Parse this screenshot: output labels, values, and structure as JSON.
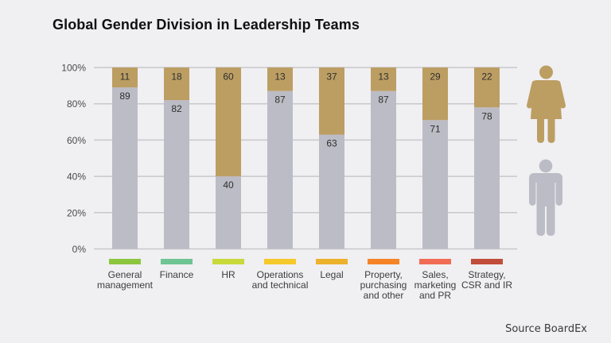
{
  "source": "Source BoardEx",
  "colors": {
    "background": "#f0eff2",
    "women": "#bc9e63",
    "men": "#bcbcc6",
    "gridline": "#c8c8cc"
  },
  "icons": {
    "women": "female-figure-icon",
    "men": "male-figure-icon"
  },
  "chart_data": {
    "type": "bar",
    "stacked": true,
    "title": "Global Gender Division in Leadership Teams",
    "xlabel": "",
    "ylabel": "",
    "ylim": [
      0,
      100
    ],
    "yticks": [
      0,
      20,
      40,
      60,
      80,
      100
    ],
    "ytick_labels": [
      "0%",
      "20%",
      "40%",
      "60%",
      "80%",
      "100%"
    ],
    "grid": true,
    "legend": "right (icons: women on top, men below)",
    "categories": [
      "General management",
      "Finance",
      "HR",
      "Operations and technical",
      "Legal",
      "Property, purchasing and other",
      "Sales, marketing and PR",
      "Strategy, CSR and IR"
    ],
    "category_lines": [
      [
        "General",
        "management"
      ],
      [
        "Finance"
      ],
      [
        "HR"
      ],
      [
        "Operations",
        "and technical"
      ],
      [
        "Legal"
      ],
      [
        "Property,",
        "purchasing",
        "and other"
      ],
      [
        "Sales,",
        "marketing",
        "and PR"
      ],
      [
        "Strategy,",
        "CSR and IR"
      ]
    ],
    "category_colors": [
      "#8cc63f",
      "#6fc494",
      "#c8d93a",
      "#f5c92b",
      "#ecb22b",
      "#f58426",
      "#f26c55",
      "#c04e3a"
    ],
    "series": [
      {
        "name": "Men",
        "color": "#bcbcc6",
        "values": [
          89,
          82,
          40,
          87,
          63,
          87,
          71,
          78
        ]
      },
      {
        "name": "Women",
        "color": "#bc9e63",
        "values": [
          11,
          18,
          60,
          13,
          37,
          13,
          29,
          22
        ]
      }
    ]
  }
}
